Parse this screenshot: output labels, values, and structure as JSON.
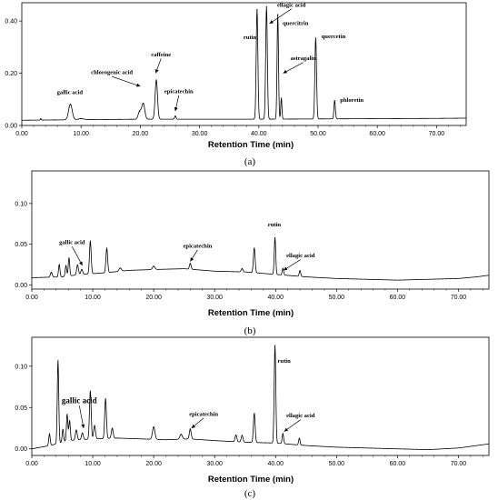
{
  "chart_data": [
    {
      "type": "line",
      "panel_label": "(a)",
      "xlabel": "Retention Time (min)",
      "ylabel": "",
      "xlim": [
        0,
        75
      ],
      "ylim": [
        0,
        0.47
      ],
      "x_ticks": [
        "0.00",
        "10.00",
        "20.00",
        "30.00",
        "40.00",
        "50.00",
        "60.00",
        "70.00"
      ],
      "y_ticks": [
        {
          "v": 0.0,
          "label": "0.00"
        },
        {
          "v": 0.2,
          "label": "0.20"
        },
        {
          "v": 0.4,
          "label": "0.40"
        }
      ],
      "baseline": [
        [
          0,
          0.02
        ],
        [
          10,
          0.022
        ],
        [
          20,
          0.024
        ],
        [
          30,
          0.024
        ],
        [
          40,
          0.024
        ],
        [
          50,
          0.025
        ],
        [
          60,
          0.026
        ],
        [
          70,
          0.027
        ],
        [
          75,
          0.028
        ]
      ],
      "peaks": [
        [
          3.2,
          0.005,
          0.08
        ],
        [
          8.2,
          0.06,
          0.3
        ],
        [
          10.0,
          0.004,
          0.5
        ],
        [
          19.9,
          0.03,
          0.25
        ],
        [
          20.5,
          0.06,
          0.25
        ],
        [
          22.7,
          0.15,
          0.2
        ],
        [
          25.9,
          0.012,
          0.12
        ],
        [
          39.7,
          0.42,
          0.14
        ],
        [
          41.3,
          0.43,
          0.14
        ],
        [
          43.2,
          0.4,
          0.12
        ],
        [
          43.8,
          0.08,
          0.1
        ],
        [
          49.6,
          0.31,
          0.14
        ],
        [
          52.8,
          0.07,
          0.12
        ]
      ],
      "annotations": [
        {
          "text": "gallic acid",
          "x": 8.1,
          "y": 0.12,
          "arrow": false
        },
        {
          "text": "chlorogenic acid",
          "x": 15.2,
          "y": 0.196,
          "arrow": true,
          "ax": 20.0,
          "ay": 0.15
        },
        {
          "text": "caffeine",
          "x": 23.5,
          "y": 0.265,
          "arrow": true,
          "ax": 22.6,
          "ay": 0.2
        },
        {
          "text": "epicatechin",
          "x": 26.5,
          "y": 0.124,
          "arrow": true,
          "ax": 25.9,
          "ay": 0.055
        },
        {
          "text": "rutin",
          "x": 38.5,
          "y": 0.33,
          "arrow": false
        },
        {
          "text": "ellagic acid",
          "x": 45.5,
          "y": 0.455,
          "arrow": true,
          "ax": 41.8,
          "ay": 0.39
        },
        {
          "text": "quercitrin",
          "x": 46.2,
          "y": 0.385,
          "arrow": false
        },
        {
          "text": "astragalin",
          "x": 47.5,
          "y": 0.25,
          "arrow": true,
          "ax": 44.1,
          "ay": 0.2
        },
        {
          "text": "quercetin",
          "x": 52.6,
          "y": 0.335,
          "arrow": false
        },
        {
          "text": "phloretin",
          "x": 55.7,
          "y": 0.09,
          "arrow": false
        }
      ]
    },
    {
      "type": "line",
      "panel_label": "(b)",
      "xlabel": "Retention Time (min)",
      "ylabel": "",
      "xlim": [
        0,
        75
      ],
      "ylim": [
        -0.005,
        0.14
      ],
      "x_ticks": [
        "0.00",
        "10.00",
        "20.00",
        "30.00",
        "40.00",
        "50.00",
        "60.00",
        "70.00"
      ],
      "y_ticks": [
        {
          "v": 0.0,
          "label": "0.00"
        },
        {
          "v": 0.05,
          "label": "0.05"
        },
        {
          "v": 0.1,
          "label": "0.10"
        }
      ],
      "baseline": [
        [
          0,
          0.009
        ],
        [
          5,
          0.01
        ],
        [
          8,
          0.013
        ],
        [
          12,
          0.015
        ],
        [
          16,
          0.018
        ],
        [
          20,
          0.019
        ],
        [
          25,
          0.02
        ],
        [
          30,
          0.017
        ],
        [
          35,
          0.016
        ],
        [
          40,
          0.013
        ],
        [
          45,
          0.01
        ],
        [
          50,
          0.008
        ],
        [
          55,
          0.007
        ],
        [
          60,
          0.006
        ],
        [
          65,
          0.007
        ],
        [
          70,
          0.008
        ],
        [
          73,
          0.01
        ],
        [
          75,
          0.012
        ]
      ],
      "peaks": [
        [
          3.2,
          0.006,
          0.15
        ],
        [
          4.5,
          0.015,
          0.12
        ],
        [
          5.6,
          0.013,
          0.12
        ],
        [
          6.1,
          0.022,
          0.12
        ],
        [
          7.5,
          0.012,
          0.15
        ],
        [
          8.2,
          0.006,
          0.15
        ],
        [
          9.6,
          0.04,
          0.14
        ],
        [
          12.3,
          0.03,
          0.14
        ],
        [
          14.5,
          0.004,
          0.2
        ],
        [
          20.0,
          0.004,
          0.2
        ],
        [
          26.0,
          0.007,
          0.14
        ],
        [
          34.5,
          0.004,
          0.15
        ],
        [
          36.5,
          0.03,
          0.14
        ],
        [
          39.9,
          0.045,
          0.12
        ],
        [
          41.2,
          0.008,
          0.12
        ],
        [
          44.0,
          0.007,
          0.12
        ]
      ],
      "annotations": [
        {
          "text": "gallic acid",
          "x": 6.6,
          "y": 0.05,
          "arrow": true,
          "ax": 8.3,
          "ay": 0.024
        },
        {
          "text": "epicatechin",
          "x": 27.2,
          "y": 0.046,
          "arrow": true,
          "ax": 26.0,
          "ay": 0.029
        },
        {
          "text": "rutin",
          "x": 39.8,
          "y": 0.072,
          "arrow": false
        },
        {
          "text": "ellagic acid",
          "x": 44.1,
          "y": 0.034,
          "arrow": true,
          "ax": 41.3,
          "ay": 0.018
        }
      ]
    },
    {
      "type": "line",
      "panel_label": "(c)",
      "xlabel": "Retention Time (min)",
      "ylabel": "",
      "xlim": [
        0,
        75
      ],
      "ylim": [
        -0.008,
        0.135
      ],
      "x_ticks": [
        "0.00",
        "10.00",
        "20.00",
        "30.00",
        "40.00",
        "50.00",
        "60.00",
        "70.00"
      ],
      "y_ticks": [
        {
          "v": 0.0,
          "label": "0.00"
        },
        {
          "v": 0.05,
          "label": "0.05"
        },
        {
          "v": 0.1,
          "label": "0.10"
        }
      ],
      "baseline": [
        [
          0,
          0.0
        ],
        [
          3,
          0.004
        ],
        [
          6,
          0.01
        ],
        [
          10,
          0.012
        ],
        [
          14,
          0.013
        ],
        [
          18,
          0.012
        ],
        [
          22,
          0.011
        ],
        [
          26,
          0.012
        ],
        [
          30,
          0.01
        ],
        [
          35,
          0.008
        ],
        [
          40,
          0.007
        ],
        [
          45,
          0.004
        ],
        [
          50,
          0.002
        ],
        [
          55,
          0.001
        ],
        [
          60,
          0.0
        ],
        [
          65,
          -0.001
        ],
        [
          70,
          0.001
        ],
        [
          73,
          0.004
        ],
        [
          75,
          0.006
        ]
      ],
      "peaks": [
        [
          2.9,
          0.014,
          0.12
        ],
        [
          4.3,
          0.1,
          0.12
        ],
        [
          5.1,
          0.015,
          0.12
        ],
        [
          5.8,
          0.032,
          0.12
        ],
        [
          6.2,
          0.024,
          0.12
        ],
        [
          7.3,
          0.012,
          0.15
        ],
        [
          8.3,
          0.008,
          0.15
        ],
        [
          9.6,
          0.058,
          0.14
        ],
        [
          10.3,
          0.016,
          0.15
        ],
        [
          12.1,
          0.048,
          0.14
        ],
        [
          13.2,
          0.012,
          0.15
        ],
        [
          20.0,
          0.015,
          0.2
        ],
        [
          24.5,
          0.006,
          0.2
        ],
        [
          26.0,
          0.012,
          0.15
        ],
        [
          33.5,
          0.008,
          0.15
        ],
        [
          34.5,
          0.008,
          0.15
        ],
        [
          36.5,
          0.035,
          0.14
        ],
        [
          39.9,
          0.118,
          0.13
        ],
        [
          41.2,
          0.012,
          0.12
        ],
        [
          43.9,
          0.008,
          0.12
        ]
      ],
      "annotations": [
        {
          "text": "gallic acid",
          "x": 7.8,
          "y": 0.055,
          "arrow": true,
          "big": true,
          "ax": 8.5,
          "ay": 0.025
        },
        {
          "text": "epicatechin",
          "x": 28.2,
          "y": 0.04,
          "arrow": true,
          "ax": 26.2,
          "ay": 0.025
        },
        {
          "text": "rutin",
          "x": 41.4,
          "y": 0.104,
          "arrow": false
        },
        {
          "text": "ellagic acid",
          "x": 44.1,
          "y": 0.038,
          "arrow": true,
          "ax": 41.4,
          "ay": 0.021
        }
      ]
    }
  ]
}
